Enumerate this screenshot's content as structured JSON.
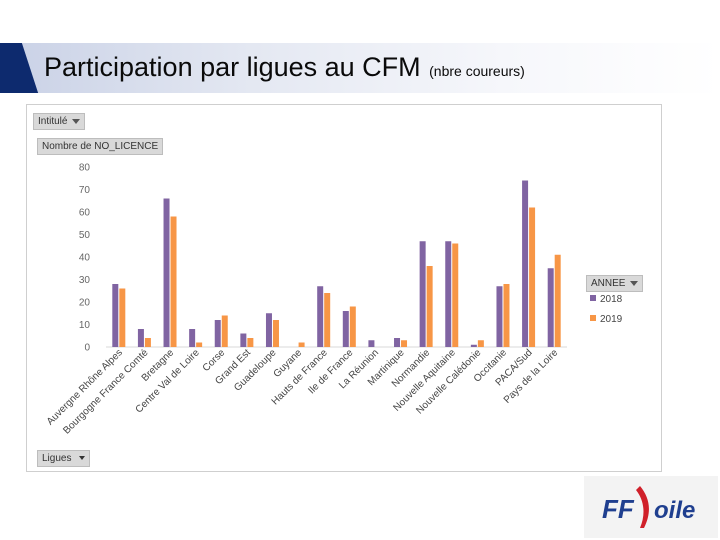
{
  "header": {
    "title_main": "Participation par ligues au CFM",
    "title_sub": "(nbre coureurs)"
  },
  "pivot": {
    "filter_field": "Intitulé",
    "value_field": "Nombre de NO_LICENCE",
    "axis_field": "Ligues",
    "legend_field": "ANNEE"
  },
  "chart_data": {
    "type": "bar",
    "title": "",
    "xlabel": "",
    "ylabel": "",
    "ylim": [
      0,
      80
    ],
    "yticks": [
      0,
      10,
      20,
      30,
      40,
      50,
      60,
      70,
      80
    ],
    "grid": false,
    "legend_position": "right",
    "categories": [
      "Auvergne Rhône Alpes",
      "Bourgogne France Comté",
      "Bretagne",
      "Centre Val de Loire",
      "Corse",
      "Grand Est",
      "Guadeloupe",
      "Guyane",
      "Hauts de France",
      "Ile de France",
      "La Réunion",
      "Martinique",
      "Normandie",
      "Nouvelle Aquitaine",
      "Nouvelle Calédonie",
      "Occitanie",
      "PACA/Sud",
      "Pays de la Loire"
    ],
    "series": [
      {
        "name": "2018",
        "color": "#8064a2",
        "values": [
          28,
          8,
          66,
          8,
          12,
          6,
          15,
          0,
          27,
          16,
          3,
          4,
          47,
          47,
          1,
          27,
          74,
          35
        ]
      },
      {
        "name": "2019",
        "color": "#f79646",
        "values": [
          26,
          4,
          58,
          2,
          14,
          4,
          12,
          2,
          24,
          18,
          0,
          3,
          36,
          46,
          3,
          28,
          62,
          41
        ]
      }
    ]
  },
  "logo": {
    "text_ff": "FF",
    "text_rest": "oile",
    "color_blue": "#1f3f8f",
    "color_red": "#d0202a"
  }
}
